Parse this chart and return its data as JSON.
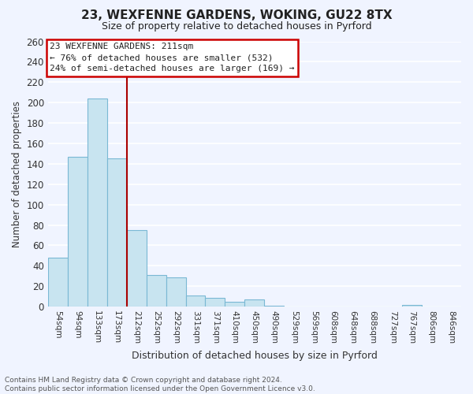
{
  "title_line1": "23, WEXFENNE GARDENS, WOKING, GU22 8TX",
  "title_line2": "Size of property relative to detached houses in Pyrford",
  "xlabel": "Distribution of detached houses by size in Pyrford",
  "ylabel": "Number of detached properties",
  "bar_values": [
    48,
    147,
    204,
    145,
    75,
    31,
    29,
    11,
    9,
    5,
    7,
    1,
    0,
    0,
    0,
    0,
    0,
    0,
    2,
    0,
    0
  ],
  "bar_labels": [
    "54sqm",
    "94sqm",
    "133sqm",
    "173sqm",
    "212sqm",
    "252sqm",
    "292sqm",
    "331sqm",
    "371sqm",
    "410sqm",
    "450sqm",
    "490sqm",
    "529sqm",
    "569sqm",
    "608sqm",
    "648sqm",
    "688sqm",
    "727sqm",
    "767sqm",
    "806sqm",
    "846sqm"
  ],
  "bar_color": "#c8e4f0",
  "bar_edge_color": "#7ab8d4",
  "vline_color": "#aa0000",
  "annotation_title": "23 WEXFENNE GARDENS: 211sqm",
  "annotation_line1": "← 76% of detached houses are smaller (532)",
  "annotation_line2": "24% of semi-detached houses are larger (169) →",
  "box_facecolor": "white",
  "box_edgecolor": "#cc0000",
  "ylim": [
    0,
    260
  ],
  "yticks": [
    0,
    20,
    40,
    60,
    80,
    100,
    120,
    140,
    160,
    180,
    200,
    220,
    240,
    260
  ],
  "footer_line1": "Contains HM Land Registry data © Crown copyright and database right 2024.",
  "footer_line2": "Contains public sector information licensed under the Open Government Licence v3.0.",
  "background_color": "#f0f4ff",
  "grid_color": "white",
  "title_color": "#222222"
}
